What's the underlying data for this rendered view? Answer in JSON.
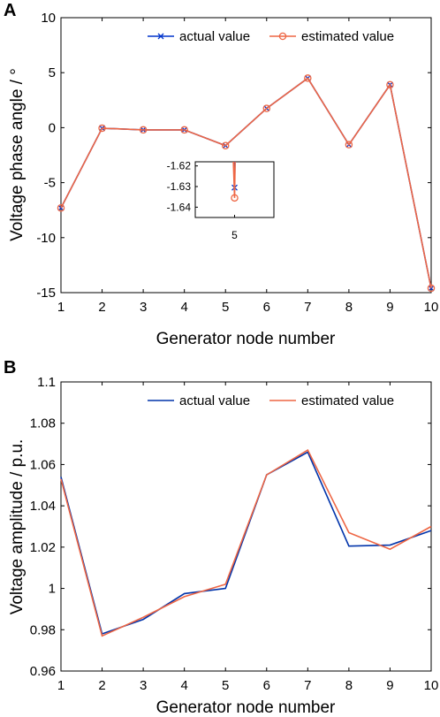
{
  "panels": {
    "a": {
      "label": "A"
    },
    "b": {
      "label": "B"
    }
  },
  "chart_data": [
    {
      "id": "a",
      "type": "line",
      "xlabel": "Generator node number",
      "ylabel": "Voltage phase angle / °",
      "xlim": [
        1,
        10
      ],
      "ylim": [
        -15,
        10
      ],
      "xticks": [
        1,
        2,
        3,
        4,
        5,
        6,
        7,
        8,
        9,
        10
      ],
      "yticks": [
        -15,
        -10,
        -5,
        0,
        5,
        10
      ],
      "x": [
        1,
        2,
        3,
        4,
        5,
        6,
        7,
        8,
        9,
        10
      ],
      "series": [
        {
          "name": "actual value",
          "color": "#0033cc",
          "marker": "x",
          "values": [
            -7.3,
            -0.05,
            -0.2,
            -0.2,
            -1.63,
            1.75,
            4.5,
            -1.55,
            3.9,
            -14.6
          ]
        },
        {
          "name": "estimated value",
          "color": "#ee6644",
          "marker": "o",
          "values": [
            -7.3,
            -0.05,
            -0.2,
            -0.2,
            -1.635,
            1.75,
            4.5,
            -1.55,
            3.9,
            -14.6
          ]
        }
      ],
      "legend": "top-right",
      "grid": false,
      "inset": {
        "xlim": [
          4.6,
          5.4
        ],
        "ylim": [
          -1.645,
          -1.618
        ],
        "yticks": [
          -1.62,
          -1.63,
          -1.64
        ],
        "xticks": [
          5
        ],
        "series_values": [
          -1.6305,
          -1.6355
        ]
      }
    },
    {
      "id": "b",
      "type": "line",
      "xlabel": "Generator node number",
      "ylabel": "Voltage amplitude / p.u.",
      "xlim": [
        1,
        10
      ],
      "ylim": [
        0.96,
        1.1
      ],
      "xticks": [
        1,
        2,
        3,
        4,
        5,
        6,
        7,
        8,
        9,
        10
      ],
      "yticks": [
        0.96,
        0.98,
        1,
        1.02,
        1.04,
        1.06,
        1.08,
        1.1
      ],
      "x": [
        1,
        2,
        3,
        4,
        5,
        6,
        7,
        8,
        9,
        10
      ],
      "series": [
        {
          "name": "actual value",
          "color": "#0033aa",
          "values": [
            1.054,
            0.978,
            0.985,
            0.9975,
            1.0,
            1.055,
            1.066,
            1.0205,
            1.021,
            1.028
          ]
        },
        {
          "name": "estimated value",
          "color": "#ee6644",
          "values": [
            1.053,
            0.977,
            0.986,
            0.996,
            1.002,
            1.055,
            1.067,
            1.027,
            1.019,
            1.03
          ]
        }
      ],
      "legend": "top-right",
      "grid": false
    }
  ]
}
